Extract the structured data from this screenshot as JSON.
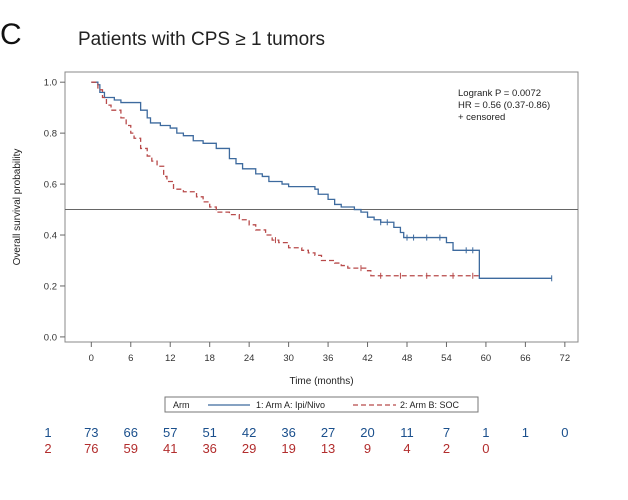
{
  "panel_letter": "C",
  "colors": {
    "arm_a": "#3d6a9e",
    "arm_b": "#b84a4a",
    "risk_a": "#1a4f8c",
    "risk_b": "#b22d2d",
    "refline": "#666666"
  },
  "chart_data": {
    "type": "line",
    "title": "Patients with CPS ≥ 1 tumors",
    "xlabel": "Time (months)",
    "ylabel": "Overall survival probability",
    "xlim": [
      -4,
      74
    ],
    "ylim": [
      -0.02,
      1.04
    ],
    "xticks": [
      0,
      6,
      12,
      18,
      24,
      30,
      36,
      42,
      48,
      54,
      60,
      66,
      72
    ],
    "yticks": [
      "0.0",
      "0.2",
      "0.4",
      "0.6",
      "0.8",
      "1.0"
    ],
    "reference_line_y": 0.5,
    "grid": false,
    "annotations": [
      "Logrank P = 0.0072",
      "HR = 0.56 (0.37-0.86)",
      "+ censored"
    ],
    "legend": {
      "position": "bottom",
      "title": "Arm",
      "entries": [
        "1: Arm A: Ipi/Nivo",
        "2: Arm B: SOC"
      ]
    },
    "series": [
      {
        "name": "1: Arm A: Ipi/Nivo",
        "step": true,
        "points": [
          [
            0,
            1.0
          ],
          [
            1,
            0.99
          ],
          [
            1.3,
            0.96
          ],
          [
            2,
            0.94
          ],
          [
            3.5,
            0.93
          ],
          [
            4.5,
            0.92
          ],
          [
            7.5,
            0.89
          ],
          [
            8.5,
            0.86
          ],
          [
            9,
            0.84
          ],
          [
            10.5,
            0.83
          ],
          [
            12,
            0.82
          ],
          [
            13,
            0.8
          ],
          [
            14,
            0.79
          ],
          [
            15.5,
            0.77
          ],
          [
            17,
            0.76
          ],
          [
            19,
            0.74
          ],
          [
            21,
            0.7
          ],
          [
            22,
            0.68
          ],
          [
            23,
            0.66
          ],
          [
            25,
            0.64
          ],
          [
            26,
            0.63
          ],
          [
            27,
            0.61
          ],
          [
            29,
            0.6
          ],
          [
            30,
            0.59
          ],
          [
            34,
            0.58
          ],
          [
            34.5,
            0.56
          ],
          [
            36,
            0.54
          ],
          [
            37,
            0.52
          ],
          [
            38,
            0.51
          ],
          [
            40,
            0.5
          ],
          [
            41,
            0.49
          ],
          [
            42,
            0.47
          ],
          [
            43,
            0.46
          ],
          [
            44,
            0.45
          ],
          [
            46,
            0.43
          ],
          [
            47,
            0.41
          ],
          [
            47.5,
            0.39
          ],
          [
            54,
            0.37
          ],
          [
            55,
            0.34
          ],
          [
            58,
            0.34
          ],
          [
            59,
            0.23
          ],
          [
            70,
            0.23
          ]
        ],
        "censored": [
          [
            44,
            0.45
          ],
          [
            45,
            0.45
          ],
          [
            48,
            0.39
          ],
          [
            49,
            0.39
          ],
          [
            51,
            0.39
          ],
          [
            53,
            0.39
          ],
          [
            57,
            0.34
          ],
          [
            58,
            0.34
          ],
          [
            70,
            0.23
          ]
        ]
      },
      {
        "name": "2: Arm B: SOC",
        "step": true,
        "points": [
          [
            0,
            1.0
          ],
          [
            1,
            0.97
          ],
          [
            1.7,
            0.94
          ],
          [
            2.3,
            0.91
          ],
          [
            3,
            0.89
          ],
          [
            4.5,
            0.86
          ],
          [
            5.3,
            0.83
          ],
          [
            6,
            0.8
          ],
          [
            6.5,
            0.78
          ],
          [
            7.5,
            0.74
          ],
          [
            8.5,
            0.71
          ],
          [
            9.2,
            0.69
          ],
          [
            10,
            0.67
          ],
          [
            11,
            0.63
          ],
          [
            11.5,
            0.61
          ],
          [
            12.5,
            0.58
          ],
          [
            14,
            0.57
          ],
          [
            16,
            0.55
          ],
          [
            17,
            0.53
          ],
          [
            18,
            0.51
          ],
          [
            19,
            0.49
          ],
          [
            21,
            0.48
          ],
          [
            22.5,
            0.46
          ],
          [
            24,
            0.44
          ],
          [
            25,
            0.42
          ],
          [
            26.5,
            0.4
          ],
          [
            27.5,
            0.38
          ],
          [
            28.5,
            0.37
          ],
          [
            30,
            0.35
          ],
          [
            32,
            0.34
          ],
          [
            33,
            0.33
          ],
          [
            34,
            0.32
          ],
          [
            35,
            0.3
          ],
          [
            37,
            0.29
          ],
          [
            38,
            0.28
          ],
          [
            39,
            0.27
          ],
          [
            42,
            0.26
          ],
          [
            42.5,
            0.24
          ],
          [
            44,
            0.24
          ],
          [
            59,
            0.24
          ]
        ],
        "censored": [
          [
            28,
            0.38
          ],
          [
            41,
            0.27
          ],
          [
            44,
            0.24
          ],
          [
            47,
            0.24
          ],
          [
            51,
            0.24
          ],
          [
            55,
            0.24
          ],
          [
            58,
            0.24
          ]
        ]
      }
    ],
    "risk_table": {
      "times": [
        0,
        6,
        12,
        18,
        24,
        30,
        36,
        42,
        48,
        54,
        60,
        66,
        72
      ],
      "arm_a_label": "1",
      "arm_b_label": "2",
      "arm_a": [
        "73",
        "66",
        "57",
        "51",
        "42",
        "36",
        "27",
        "20",
        "11",
        "7",
        "1",
        "1",
        "0"
      ],
      "arm_b": [
        "76",
        "59",
        "41",
        "36",
        "29",
        "19",
        "13",
        "9",
        "4",
        "2",
        "0"
      ]
    }
  }
}
